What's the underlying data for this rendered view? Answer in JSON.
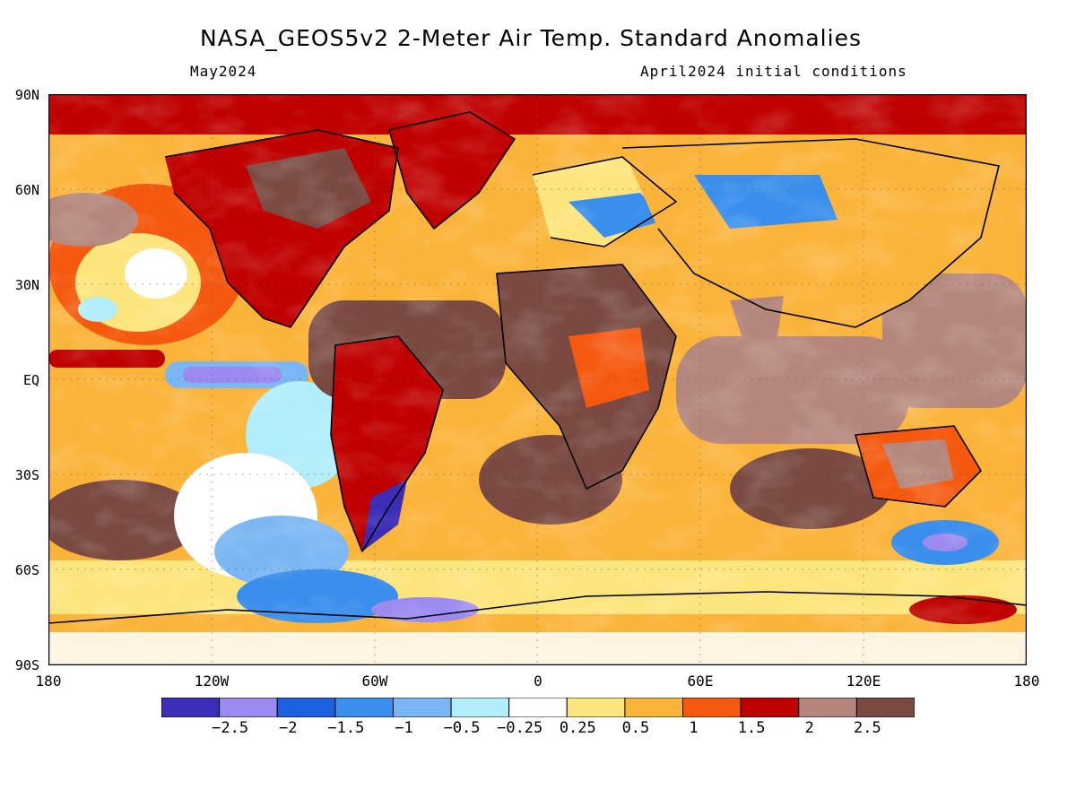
{
  "title": "NASA_GEOS5v2 2-Meter Air Temp. Standard Anomalies",
  "subtitle_left": "May2024",
  "subtitle_right": "April2024 initial conditions",
  "axes": {
    "lat_labels": [
      "90N",
      "60N",
      "30N",
      "EQ",
      "30S",
      "60S",
      "90S"
    ],
    "lon_labels": [
      "180",
      "120W",
      "60W",
      "0",
      "60E",
      "120E",
      "180"
    ]
  },
  "legend": {
    "colors": [
      "#3b2db6",
      "#9c8af0",
      "#1c5fe0",
      "#3a8fec",
      "#7ab6f4",
      "#b2eefa",
      "#ffffff",
      "#fde57d",
      "#fbb43a",
      "#f5590f",
      "#c00000",
      "#b5877c",
      "#7a4a42"
    ],
    "labels": [
      "−2.5",
      "−2",
      "−1.5",
      "−1",
      "−0.5",
      "−0.25",
      "0.25",
      "0.5",
      "1",
      "1.5",
      "2",
      "2.5"
    ]
  }
}
